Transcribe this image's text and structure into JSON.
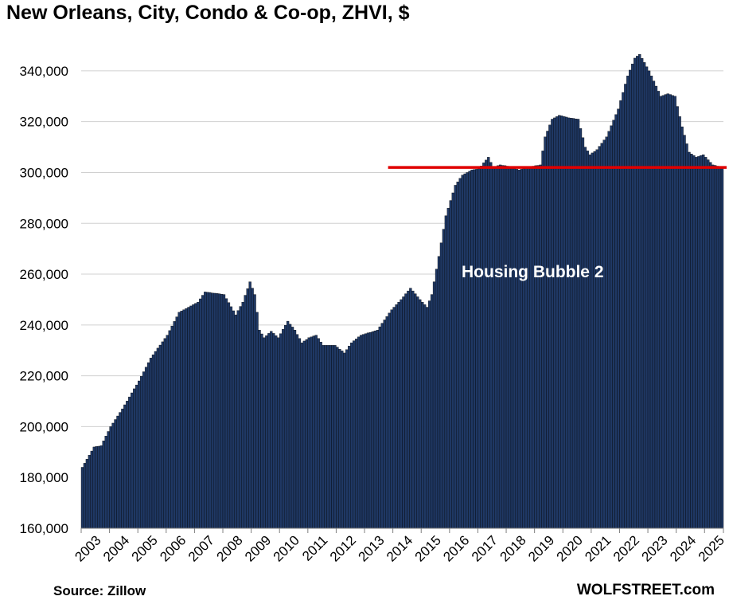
{
  "chart_data": {
    "type": "bar",
    "title": "New Orleans, City, Condo & Co-op, ZHVI, $",
    "xlabel": "",
    "ylabel": "",
    "ylim": [
      160000,
      350000
    ],
    "yticks": [
      160000,
      180000,
      200000,
      220000,
      240000,
      260000,
      280000,
      300000,
      320000,
      340000
    ],
    "ytick_labels": [
      "160,000",
      "180,000",
      "200,000",
      "220,000",
      "240,000",
      "260,000",
      "280,000",
      "300,000",
      "320,000",
      "340,000"
    ],
    "x_start": "2003-01",
    "frequency": "monthly",
    "x_tick_labels": [
      "2003",
      "2004",
      "2005",
      "2006",
      "2007",
      "2008",
      "2009",
      "2010",
      "2011",
      "2012",
      "2013",
      "2014",
      "2015",
      "2016",
      "2017",
      "2018",
      "2019",
      "2020",
      "2021",
      "2022",
      "2023",
      "2024",
      "2025"
    ],
    "grid": true,
    "legend": "none",
    "bar_color": "#1f3864",
    "reference_line": {
      "value": 302000,
      "color": "#e00000",
      "from": "2014-01"
    },
    "annotations": [
      {
        "text": "Housing Bubble 2"
      }
    ],
    "anchors": [
      [
        "2003-01",
        184000
      ],
      [
        "2003-06",
        192000
      ],
      [
        "2003-09",
        192500
      ],
      [
        "2004-01",
        200000
      ],
      [
        "2004-06",
        207000
      ],
      [
        "2005-01",
        218000
      ],
      [
        "2005-06",
        227000
      ],
      [
        "2006-01",
        236000
      ],
      [
        "2006-06",
        245000
      ],
      [
        "2006-10",
        247000
      ],
      [
        "2007-02",
        249000
      ],
      [
        "2007-05",
        253000
      ],
      [
        "2008-01",
        252000
      ],
      [
        "2008-06",
        244000
      ],
      [
        "2008-09",
        249000
      ],
      [
        "2008-12",
        257000
      ],
      [
        "2009-02",
        252000
      ],
      [
        "2009-04",
        238000
      ],
      [
        "2009-06",
        235000
      ],
      [
        "2009-09",
        237500
      ],
      [
        "2009-12",
        235000
      ],
      [
        "2010-04",
        241500
      ],
      [
        "2010-07",
        238000
      ],
      [
        "2010-10",
        233000
      ],
      [
        "2011-01",
        235000
      ],
      [
        "2011-04",
        236000
      ],
      [
        "2011-07",
        232000
      ],
      [
        "2011-12",
        232000
      ],
      [
        "2012-04",
        229000
      ],
      [
        "2012-07",
        233000
      ],
      [
        "2012-11",
        236000
      ],
      [
        "2013-06",
        238000
      ],
      [
        "2013-12",
        246000
      ],
      [
        "2014-04",
        250000
      ],
      [
        "2014-08",
        254500
      ],
      [
        "2014-12",
        250000
      ],
      [
        "2015-03",
        247000
      ],
      [
        "2015-05",
        252000
      ],
      [
        "2015-08",
        267000
      ],
      [
        "2015-11",
        283000
      ],
      [
        "2016-03",
        295000
      ],
      [
        "2016-06",
        299000
      ],
      [
        "2016-10",
        301000
      ],
      [
        "2017-01",
        301500
      ],
      [
        "2017-05",
        306000
      ],
      [
        "2017-07",
        302000
      ],
      [
        "2017-10",
        303000
      ],
      [
        "2018-01",
        302500
      ],
      [
        "2018-06",
        301000
      ],
      [
        "2018-12",
        302500
      ],
      [
        "2019-03",
        303000
      ],
      [
        "2019-05",
        314000
      ],
      [
        "2019-08",
        321000
      ],
      [
        "2019-11",
        322500
      ],
      [
        "2020-03",
        321500
      ],
      [
        "2020-07",
        321000
      ],
      [
        "2020-10",
        310000
      ],
      [
        "2020-12",
        307000
      ],
      [
        "2021-03",
        309000
      ],
      [
        "2021-07",
        314000
      ],
      [
        "2021-12",
        325000
      ],
      [
        "2022-04",
        338000
      ],
      [
        "2022-07",
        345000
      ],
      [
        "2022-09",
        346500
      ],
      [
        "2023-01",
        340000
      ],
      [
        "2023-06",
        330000
      ],
      [
        "2023-09",
        331000
      ],
      [
        "2023-12",
        330000
      ],
      [
        "2024-03",
        318000
      ],
      [
        "2024-06",
        308000
      ],
      [
        "2024-09",
        306000
      ],
      [
        "2024-12",
        307000
      ],
      [
        "2025-04",
        303000
      ],
      [
        "2025-08",
        302000
      ]
    ]
  },
  "footer": {
    "source": "Source: Zillow",
    "brand": "WOLFSTREET.com"
  }
}
